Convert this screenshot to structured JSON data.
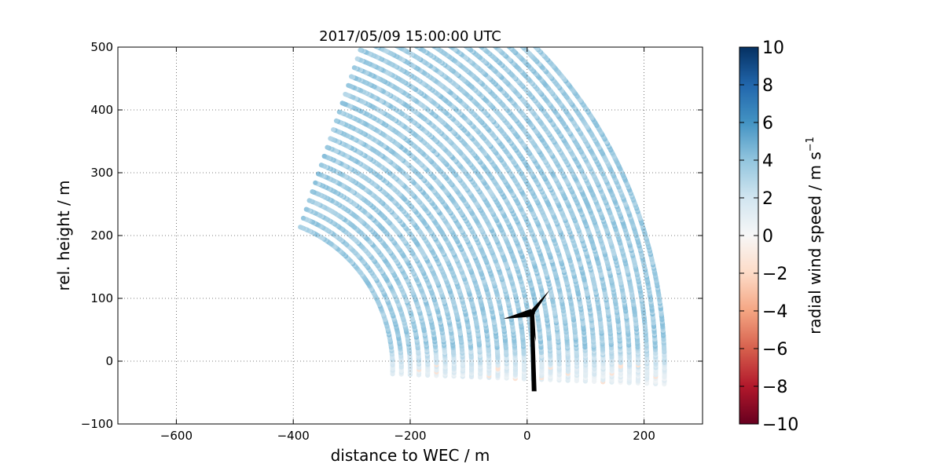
{
  "chart_data": {
    "type": "scatter",
    "title": "2017/05/09 15:00:00 UTC",
    "xlabel": "distance to WEC / m",
    "ylabel": "rel. height / m",
    "xlim": [
      -700,
      300
    ],
    "ylim": [
      -100,
      500
    ],
    "xticks": [
      -600,
      -400,
      -200,
      0,
      200
    ],
    "yticks": [
      -100,
      0,
      100,
      200,
      300,
      400,
      500
    ],
    "xtick_labels": [
      "−600",
      "−400",
      "−200",
      "0",
      "200"
    ],
    "ytick_labels": [
      "−100",
      "0",
      "100",
      "200",
      "300",
      "400",
      "500"
    ],
    "grid": true,
    "scan": {
      "description_source": "RHI scan points in range-height plane",
      "range_min_m": 240,
      "range_max_m": 705,
      "range_step_m": 15,
      "elevation_min_deg": -2,
      "elevation_max_deg": 70,
      "origin_x_m": -470,
      "origin_y_m": -12,
      "typical_radial_wind_speed_m_s": 3.5
    },
    "colorbar": {
      "label": "radial wind speed / m s",
      "label_superscript": "−1",
      "range": [
        -10,
        10
      ],
      "colormap": "RdBu",
      "ticks": [
        10,
        8,
        6,
        4,
        2,
        0,
        -2,
        -4,
        -6,
        -8,
        -10
      ],
      "tick_labels": [
        "10",
        "8",
        "6",
        "4",
        "2",
        "0",
        "−2",
        "−4",
        "−6",
        "−8",
        "−10"
      ],
      "colors": [
        "#67001f",
        "#b2182b",
        "#d6604d",
        "#f4a582",
        "#fddbc7",
        "#f7f7f7",
        "#d1e5f0",
        "#92c5de",
        "#4393c3",
        "#2166ac",
        "#053061"
      ]
    },
    "turbine": {
      "hub_x_m": 8,
      "hub_y_m": 77,
      "tower_base_y_m": -48,
      "blade_length_m": 50,
      "color": "#000000"
    }
  }
}
